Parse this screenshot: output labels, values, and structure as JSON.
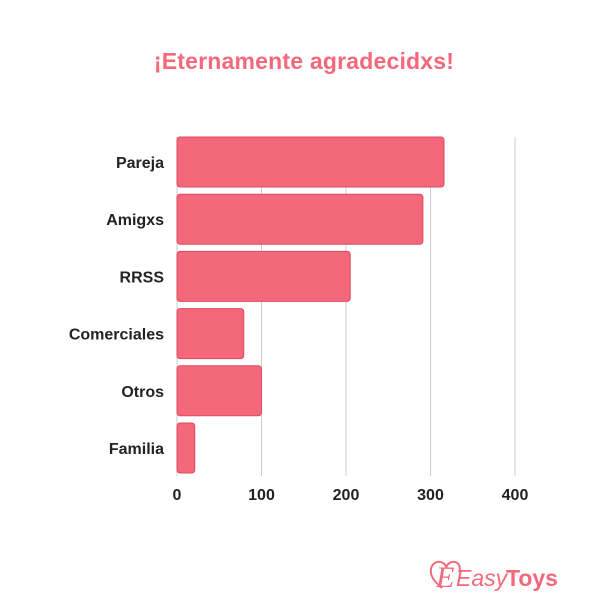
{
  "title": "¡Eternamente agradecidxs!",
  "brand": {
    "logo_text": "EasyToys",
    "logo_part1": "Easy",
    "logo_part2": "Toys",
    "color": "#f4687c"
  },
  "chart_data": {
    "type": "bar",
    "orientation": "horizontal",
    "categories": [
      "Pareja",
      "Amigxs",
      "RRSS",
      "Comerciales",
      "Otros",
      "Familia"
    ],
    "values": [
      316,
      291,
      205,
      79,
      100,
      21
    ],
    "xlim": [
      0,
      400
    ],
    "xticks": [
      0,
      100,
      200,
      300,
      400
    ],
    "grid": true,
    "bar_color": "#f4687c",
    "bar_edge_color": "#e0495f",
    "title": "¡Eternamente agradecidxs!",
    "xlabel": "",
    "ylabel": ""
  }
}
